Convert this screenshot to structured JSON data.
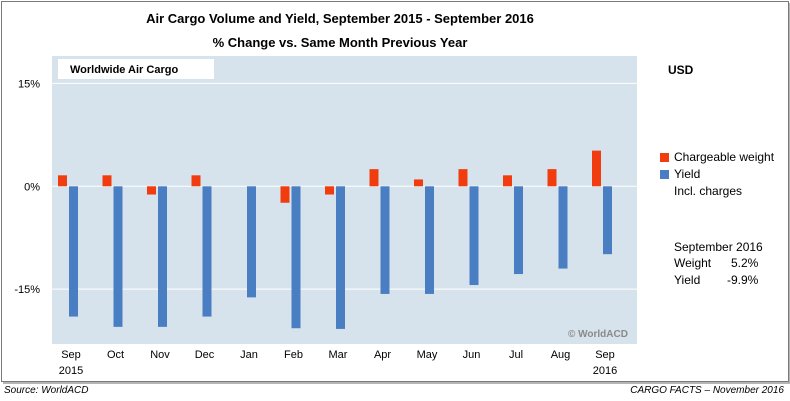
{
  "title_line1": "Air Cargo Volume and Yield, September 2015 - September 2016",
  "title_line2": "% Change vs. Same Month Previous Year",
  "panel_label": "Worldwide Air Cargo",
  "currency_label": "USD",
  "watermark": "© WorldACD",
  "legend": {
    "items": [
      {
        "label": "Chargeable weight",
        "color": "#f03c0e"
      },
      {
        "label": "Yield",
        "color": "#4a7ec2"
      }
    ],
    "note": "Incl. charges"
  },
  "summary": {
    "heading": "September 2016",
    "rows": [
      {
        "label": "Weight",
        "value": "5.2%"
      },
      {
        "label": "Yield",
        "value": "-9.9%"
      }
    ]
  },
  "source": "Source: WorldACD",
  "credit": "CARGO FACTS – November 2016",
  "chart_data": {
    "type": "bar",
    "title": "Air Cargo Volume and Yield, September 2015 - September 2016",
    "subtitle": "% Change vs. Same Month Previous Year",
    "categories": [
      "Sep",
      "Oct",
      "Nov",
      "Dec",
      "Jan",
      "Feb",
      "Mar",
      "Apr",
      "May",
      "Jun",
      "Jul",
      "Aug",
      "Sep"
    ],
    "category_sublabels": [
      "2015",
      "",
      "",
      "",
      "",
      "",
      "",
      "",
      "",
      "",
      "",
      "",
      "2016"
    ],
    "series": [
      {
        "name": "Chargeable weight",
        "color": "#f03c0e",
        "values": [
          1.6,
          1.6,
          -1.2,
          1.6,
          0,
          -2.4,
          -1.2,
          2.5,
          1.0,
          2.5,
          1.6,
          2.5,
          5.2
        ]
      },
      {
        "name": "Yield",
        "color": "#4a7ec2",
        "values": [
          -19.0,
          -20.5,
          -20.5,
          -19.0,
          -16.2,
          -20.7,
          -20.8,
          -15.7,
          -15.7,
          -14.4,
          -12.8,
          -12.0,
          -9.9
        ]
      }
    ],
    "yticks": [
      15,
      0,
      -15
    ],
    "ytick_labels": [
      "15%",
      "0%",
      "-15%"
    ],
    "ylim": [
      -23,
      19
    ],
    "xlabel": "",
    "ylabel": "",
    "grid": true,
    "legend_position": "right"
  }
}
